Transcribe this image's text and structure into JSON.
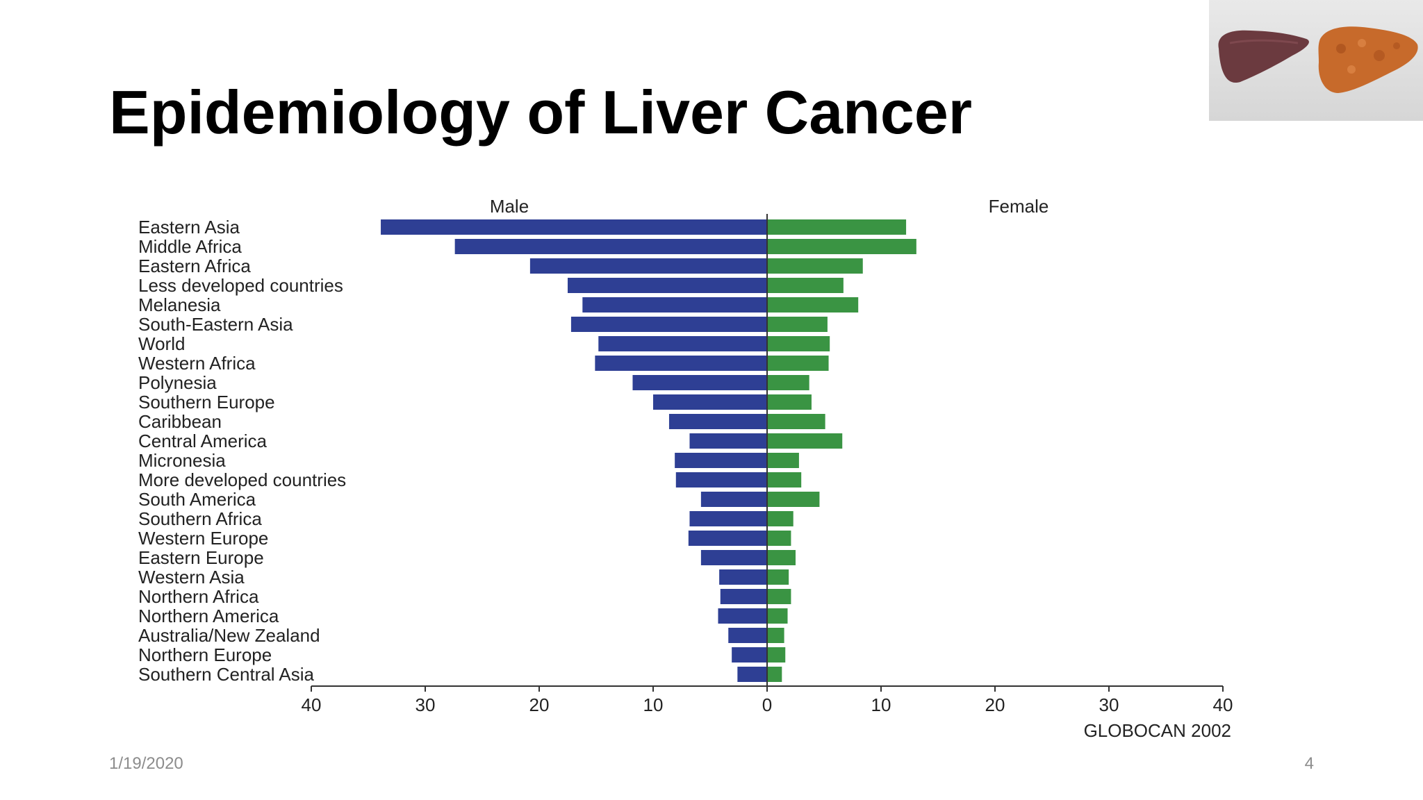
{
  "slide": {
    "title": "Epidemiology of Liver Cancer",
    "date": "1/19/2020",
    "page_number": "4"
  },
  "thumbnail": {
    "description_icon": "liver-comparison-image",
    "colors": {
      "healthy": "#6e3b3e",
      "diseased": "#c8692a"
    }
  },
  "colors": {
    "male": "#2e3f94",
    "female": "#3a9443",
    "axis": "#333333"
  },
  "chart_data": {
    "type": "bar",
    "orientation": "horizontal-population-pyramid",
    "male_label": "Male",
    "female_label": "Female",
    "source": "GLOBOCAN 2002",
    "xlim": [
      0,
      40
    ],
    "ticks": [
      "40",
      "30",
      "20",
      "10",
      "0",
      "10",
      "20",
      "30",
      "40"
    ],
    "categories": [
      "Eastern Asia",
      "Middle Africa",
      "Eastern Africa",
      "Less developed countries",
      "Melanesia",
      "South-Eastern Asia",
      "World",
      "Western Africa",
      "Polynesia",
      "Southern Europe",
      "Caribbean",
      "Central America",
      "Micronesia",
      "More developed countries",
      "South America",
      "Southern Africa",
      "Western Europe",
      "Eastern Europe",
      "Western Asia",
      "Northern Africa",
      "Northern America",
      "Australia/New Zealand",
      "Northern Europe",
      "Southern Central Asia"
    ],
    "series": [
      {
        "name": "Male",
        "values": [
          33.9,
          27.4,
          20.8,
          17.5,
          16.2,
          17.2,
          14.8,
          15.1,
          11.8,
          10.0,
          8.6,
          6.8,
          8.1,
          8.0,
          5.8,
          6.8,
          6.9,
          5.8,
          4.2,
          4.1,
          4.3,
          3.4,
          3.1,
          2.6
        ]
      },
      {
        "name": "Female",
        "values": [
          12.2,
          13.1,
          8.4,
          6.7,
          8.0,
          5.3,
          5.5,
          5.4,
          3.7,
          3.9,
          5.1,
          6.6,
          2.8,
          3.0,
          4.6,
          2.3,
          2.1,
          2.5,
          1.9,
          2.1,
          1.8,
          1.5,
          1.6,
          1.3
        ]
      }
    ]
  }
}
